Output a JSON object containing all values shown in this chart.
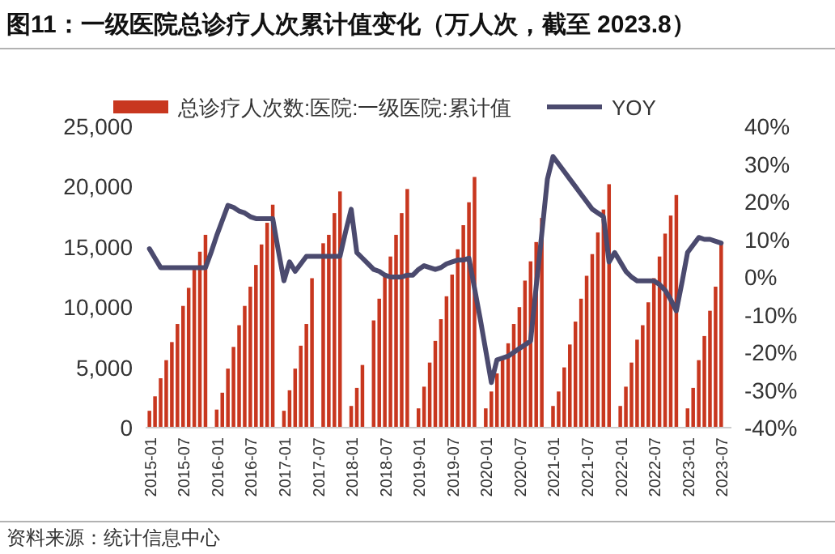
{
  "chart_data": {
    "type": "bar",
    "title": "图11：一级医院总诊疗人次累计值变化（万人次，截至 2023.8）",
    "categories": [
      "2015-01",
      null,
      null,
      null,
      null,
      null,
      "2015-07",
      null,
      null,
      null,
      null,
      null,
      "2016-01",
      null,
      null,
      null,
      null,
      null,
      "2016-07",
      null,
      null,
      null,
      null,
      null,
      "2017-01",
      null,
      null,
      null,
      null,
      null,
      "2017-07",
      null,
      null,
      null,
      null,
      null,
      "2018-01",
      null,
      null,
      null,
      null,
      null,
      "2018-07",
      null,
      null,
      null,
      null,
      null,
      "2019-01",
      null,
      null,
      null,
      null,
      null,
      "2019-07",
      null,
      null,
      null,
      null,
      null,
      "2020-01",
      null,
      null,
      null,
      null,
      null,
      "2020-07",
      null,
      null,
      null,
      null,
      null,
      "2021-01",
      null,
      null,
      null,
      null,
      null,
      "2021-07",
      null,
      null,
      null,
      null,
      null,
      "2022-01",
      null,
      null,
      null,
      null,
      null,
      "2022-07",
      null,
      null,
      null,
      null,
      null,
      "2023-01",
      null,
      null,
      null,
      null,
      null,
      "2023-07"
    ],
    "series": [
      {
        "name": "总诊疗人次数:医院:一级医院:累计值",
        "color": "#c8371f",
        "values": [
          1400,
          2600,
          4100,
          5600,
          7100,
          8600,
          10100,
          11600,
          13100,
          14600,
          16000,
          null,
          1500,
          2900,
          4900,
          6700,
          8500,
          10100,
          11700,
          13500,
          15200,
          17000,
          18500,
          null,
          1400,
          3100,
          4900,
          6800,
          8600,
          12400,
          null,
          15300,
          16000,
          17800,
          19600,
          null,
          1800,
          3300,
          5200,
          null,
          8900,
          10700,
          12800,
          14200,
          16000,
          17800,
          19800,
          null,
          1600,
          3400,
          5400,
          7200,
          9000,
          10900,
          12700,
          14800,
          16800,
          18700,
          20800,
          null,
          1600,
          3000,
          4500,
          5700,
          7000,
          8600,
          10000,
          12200,
          13800,
          15400,
          17400,
          null,
          1800,
          3000,
          5000,
          6900,
          8800,
          10700,
          12600,
          14400,
          16200,
          18100,
          20200,
          null,
          1800,
          3400,
          5400,
          7300,
          8500,
          10400,
          12400,
          14200,
          16100,
          17600,
          19300,
          null,
          1600,
          3300,
          5600,
          7600,
          9700,
          11700,
          15400
        ]
      },
      {
        "name": "YOY",
        "type": "line",
        "axis": "y2",
        "color": "#4b4a6e",
        "values": [
          7.5,
          5,
          2.5,
          2.5,
          2.5,
          2.5,
          2.5,
          2.5,
          2.5,
          2.5,
          2.5,
          6.5,
          11,
          15,
          19,
          18.5,
          17.5,
          17,
          16,
          15.5,
          15.5,
          15.5,
          15.5,
          7,
          -1,
          4,
          1.5,
          3.5,
          5.5,
          5.5,
          5.5,
          5.5,
          5.5,
          5.5,
          5.5,
          12,
          18,
          6.5,
          5,
          3.5,
          2,
          1.5,
          0.5,
          0,
          0,
          0,
          0.5,
          0.5,
          2,
          3,
          2.5,
          2,
          2.5,
          3.5,
          4,
          4.5,
          4.5,
          5,
          -3,
          -11,
          -19.5,
          -28,
          -22,
          -21.5,
          -21,
          -20,
          -19,
          -18,
          -17,
          -2.5,
          11.5,
          26,
          32,
          30,
          28,
          26,
          24,
          22,
          20,
          18,
          17,
          16,
          4,
          6.5,
          4,
          1.5,
          0,
          -1,
          -1,
          -1,
          -1,
          -2,
          -3.5,
          -6,
          -9,
          -1.5,
          6.5,
          8.5,
          10.5,
          10,
          10,
          9.5,
          9
        ]
      }
    ],
    "ylim": [
      0,
      25000
    ],
    "yticks": [
      {
        "value": 0,
        "label": "0"
      },
      {
        "value": 5000,
        "label": "5,000"
      },
      {
        "value": 10000,
        "label": "10,000"
      },
      {
        "value": 15000,
        "label": "15,000"
      },
      {
        "value": 20000,
        "label": "20,000"
      },
      {
        "value": 25000,
        "label": "25,000"
      }
    ],
    "y2lim": [
      -40,
      40
    ],
    "y2ticks": [
      {
        "value": -40,
        "label": "-40%"
      },
      {
        "value": -30,
        "label": "-30%"
      },
      {
        "value": -20,
        "label": "-20%"
      },
      {
        "value": -10,
        "label": "-10%"
      },
      {
        "value": 0,
        "label": "0%"
      },
      {
        "value": 10,
        "label": "10%"
      },
      {
        "value": 20,
        "label": "20%"
      },
      {
        "value": 30,
        "label": "30%"
      },
      {
        "value": 40,
        "label": "40%"
      }
    ],
    "legend": "top",
    "grid": false,
    "annotations": [
      "资料来源：统计信息中心"
    ]
  }
}
